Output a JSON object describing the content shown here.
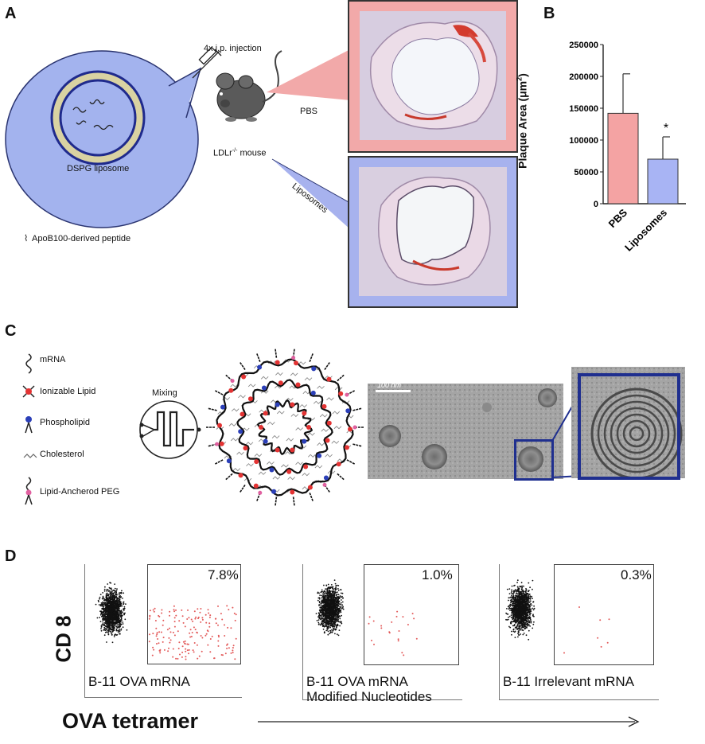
{
  "panels": {
    "a": {
      "letter": "A",
      "injection_label": "4x i.p. injection",
      "liposome_label": "DSPG liposome",
      "mouse_label": "LDLr",
      "mouse_label_sup": "-/-",
      "mouse_label_suffix": " mouse",
      "pbs_label": "PBS",
      "liposomes_label": "Liposomes",
      "peptide_legend": "ApoB100-derived peptide",
      "colors": {
        "pbs_callout": "#f2a9a9",
        "liposome_callout": "#a7b2ee",
        "bubble": "#a3b3ee",
        "shell": "#d9d2a2"
      }
    },
    "b": {
      "letter": "B",
      "significance_mark": "*"
    },
    "c": {
      "letter": "C",
      "legend": [
        "mRNA",
        "Ionizable Lipid",
        "Phospholipid",
        "Cholesterol",
        "Lipid-Ancherod PEG"
      ],
      "mixing_label": "Mixing",
      "scale_bar_label": "100 nm",
      "colors": {
        "ionizable": "#e33333",
        "phospholipid": "#2b3fb8",
        "peg": "#e060a0",
        "frame": "#1f2f8f"
      }
    },
    "d": {
      "letter": "D",
      "y_axis_label": "CD 8",
      "x_axis_label": "OVA tetramer",
      "plots": [
        {
          "percent": "7.8%",
          "label_line1": "B-11 OVA mRNA",
          "label_line2": "",
          "gated_fraction": 0.078
        },
        {
          "percent": "1.0%",
          "label_line1": "B-11 OVA mRNA",
          "label_line2": "Modified Nucleotides",
          "gated_fraction": 0.01
        },
        {
          "percent": "0.3%",
          "label_line1": "B-11 Irrelevant mRNA",
          "label_line2": "",
          "gated_fraction": 0.003
        }
      ]
    }
  },
  "chart_data": {
    "type": "bar",
    "categories": [
      "PBS",
      "Liposomes"
    ],
    "values": [
      142000,
      70000
    ],
    "error_upper": [
      204000,
      105000
    ],
    "bar_colors": [
      "#f4a3a3",
      "#a8b4f4"
    ],
    "ylabel": "Plaque Area (μm²)",
    "ylabel_text": "Plaque Area (μm",
    "ylabel_sup": "2",
    "ylabel_close": ")",
    "ylim": [
      0,
      250000
    ],
    "yticks": [
      0,
      50000,
      100000,
      150000,
      200000,
      250000
    ],
    "annotations": [
      {
        "category": "Liposomes",
        "text": "*"
      }
    ]
  }
}
